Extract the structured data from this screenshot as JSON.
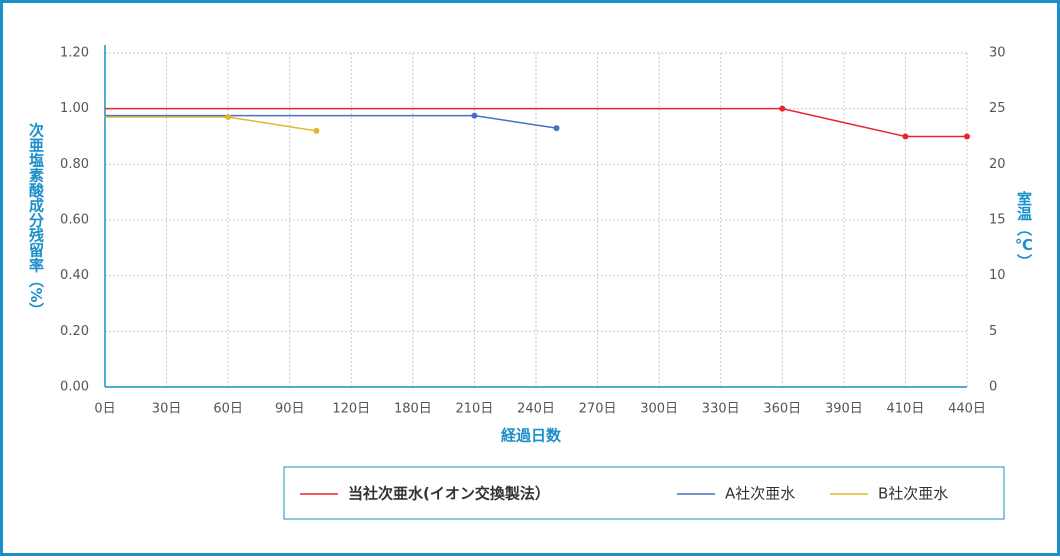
{
  "chart_data": {
    "type": "line",
    "x_label": "経過日数",
    "y_label": "次亜塩素酸成分残留率（%）",
    "y2_label": "室温（℃）",
    "xticks": [
      {
        "value": 0,
        "label": "0日"
      },
      {
        "value": 30,
        "label": "30日"
      },
      {
        "value": 60,
        "label": "60日"
      },
      {
        "value": 90,
        "label": "90日"
      },
      {
        "value": 120,
        "label": "120日"
      },
      {
        "value": 180,
        "label": "180日"
      },
      {
        "value": 210,
        "label": "210日"
      },
      {
        "value": 240,
        "label": "240日"
      },
      {
        "value": 270,
        "label": "270日"
      },
      {
        "value": 300,
        "label": "300日"
      },
      {
        "value": 330,
        "label": "330日"
      },
      {
        "value": 360,
        "label": "360日"
      },
      {
        "value": 390,
        "label": "390日"
      },
      {
        "value": 410,
        "label": "410日"
      },
      {
        "value": 440,
        "label": "440日"
      }
    ],
    "xlim": [
      0,
      440
    ],
    "ylim": [
      0,
      1.2
    ],
    "yticks": [
      {
        "value": 0,
        "label": "0.00"
      },
      {
        "value": 0.2,
        "label": "0.20"
      },
      {
        "value": 0.4,
        "label": "0.40"
      },
      {
        "value": 0.6,
        "label": "0.60"
      },
      {
        "value": 0.8,
        "label": "0.80"
      },
      {
        "value": 1,
        "label": "1.00"
      },
      {
        "value": 1.2,
        "label": "1.20"
      }
    ],
    "y2lim": [
      0,
      30
    ],
    "y2ticks": [
      0,
      5,
      10,
      15,
      20,
      25,
      30
    ],
    "grid": true,
    "series": [
      {
        "name": "当社次亜水(イオン交換製法）",
        "color": "#e8262b",
        "x": [
          0,
          360,
          410,
          440
        ],
        "values": [
          1.0,
          1.0,
          0.9,
          0.9
        ]
      },
      {
        "name": "A社次亜水",
        "color": "#4472c4",
        "x": [
          0,
          210,
          250
        ],
        "values": [
          0.975,
          0.975,
          0.93
        ]
      },
      {
        "name": "B社次亜水",
        "color": "#e0b82c",
        "x": [
          0,
          60,
          103
        ],
        "values": [
          0.97,
          0.97,
          0.92
        ]
      }
    ]
  }
}
